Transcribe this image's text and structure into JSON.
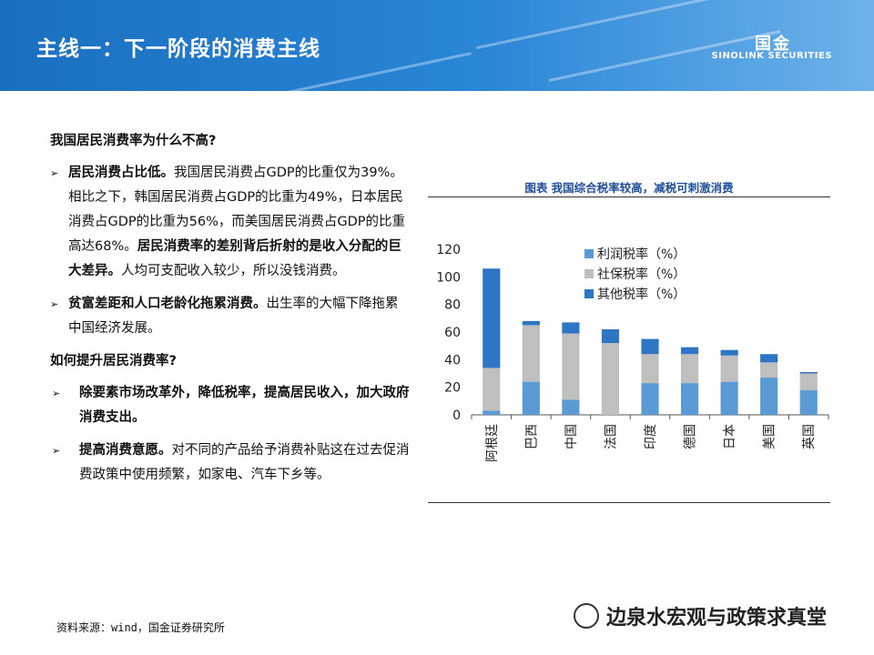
{
  "header": {
    "title": "主线一：下一阶段的消费主线",
    "logo_mark": "国金",
    "logo_text": "SINOLINK SECURITIES"
  },
  "left": {
    "heading1": "我国居民消费率为什么不高?",
    "bullets1": [
      {
        "bold1": "居民消费占比低。",
        "text1": "我国居民消费占GDP的比重仅为39%。相比之下，韩国居民消费占GDP的比重为49%，日本居民消费占GDP的比重为56%，而美国居民消费占GDP的比重高达68%。",
        "bold2": "居民消费率的差别背后折射的是收入分配的巨大差异。",
        "text2": "人均可支配收入较少，所以没钱消费。"
      },
      {
        "bold1": "贫富差距和人口老龄化拖累消费。",
        "text1": "出生率的大幅下降拖累中国经济发展。"
      }
    ],
    "heading2": "如何提升居民消费率?",
    "bullets2": [
      {
        "bold1": "除要素市场改革外，降低税率，提高居民收入，加大政府消费支出。"
      },
      {
        "bold1": "提高消费意愿。",
        "text1": "对不同的产品给予消费补贴这在过去促消费政策中使用频繁，如家电、汽车下乡等。"
      }
    ],
    "arrow_glyph": "➢"
  },
  "chart_data": {
    "type": "bar",
    "stacked": true,
    "title": "图表 我国综合税率较高，减税可刺激消费",
    "categories": [
      "阿根廷",
      "巴西",
      "中国",
      "法国",
      "印度",
      "德国",
      "日本",
      "美国",
      "英国"
    ],
    "series": [
      {
        "name": "利润税率（%）",
        "color": "#5b9bd5",
        "values": [
          3,
          24,
          11,
          0,
          23,
          23,
          24,
          27,
          18
        ]
      },
      {
        "name": "社保税率（%）",
        "color": "#bfbfbf",
        "values": [
          31,
          41,
          48,
          52,
          21,
          21,
          19,
          11,
          12
        ]
      },
      {
        "name": "其他税率（%）",
        "color": "#2e75c6",
        "values": [
          72,
          3,
          8,
          10,
          11,
          5,
          4,
          6,
          1
        ]
      }
    ],
    "yticks": [
      0,
      20,
      40,
      60,
      80,
      100,
      120
    ],
    "ylim": [
      0,
      120
    ],
    "legend_position": "top-right"
  },
  "footer": {
    "source": "资料来源：wind，国金证券研究所",
    "watermark": "边泉水宏观与政策求真堂"
  }
}
